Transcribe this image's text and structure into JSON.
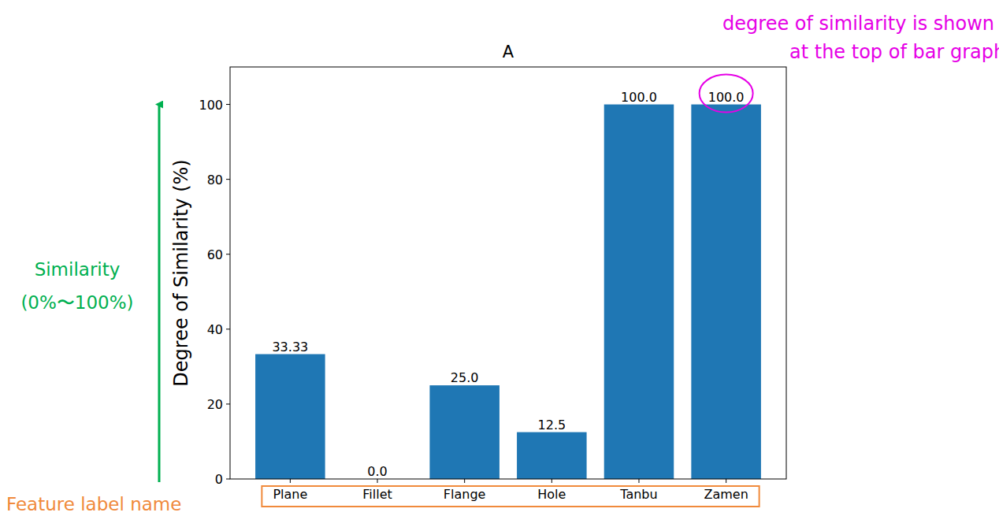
{
  "chart_data": {
    "type": "bar",
    "title": "A",
    "y_label": "Degree of Similarity (%)",
    "categories": [
      "Plane",
      "Fillet",
      "Flange",
      "Hole",
      "Tanbu",
      "Zamen"
    ],
    "values": [
      33.33,
      0.0,
      25.0,
      12.5,
      100.0,
      100.0
    ],
    "value_labels": [
      "33.33",
      "0.0",
      "25.0",
      "12.5",
      "100.0",
      "100.0"
    ],
    "data_labels": true,
    "color": "#1f77b4",
    "ylim": [
      0,
      110
    ],
    "yticks": [
      0,
      20,
      40,
      60,
      80,
      100
    ],
    "grid": false,
    "annotations": [
      {
        "lines": [
          "degree of similarity is shown",
          "at the top of bar graph"
        ],
        "color": "#e600e6"
      },
      {
        "lines": [
          "Similarity",
          "(0%〜100%)"
        ],
        "color": "#00b050"
      },
      {
        "lines": [
          "Feature label name"
        ],
        "color": "#f08a3c"
      }
    ]
  }
}
